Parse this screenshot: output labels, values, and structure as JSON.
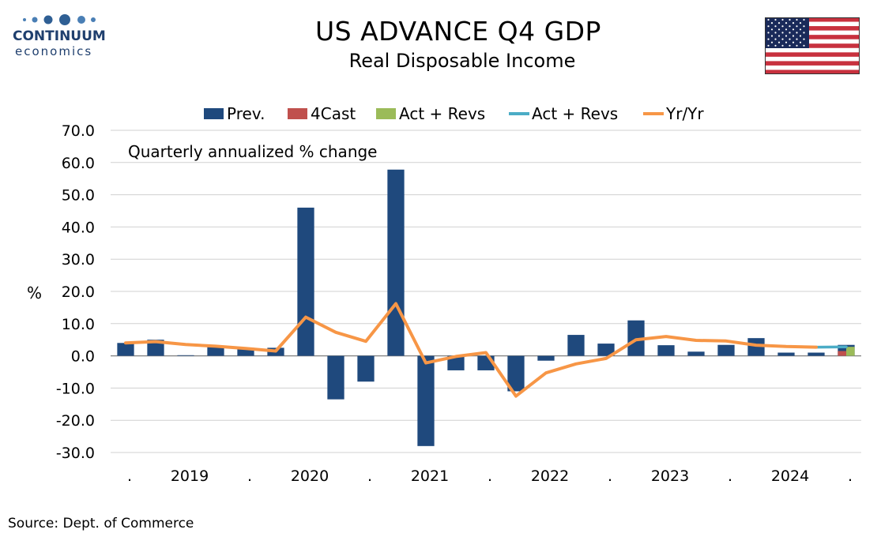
{
  "logo": {
    "brand": "CONTINUUM",
    "sub": "economics",
    "icon": "dots-logo-icon"
  },
  "header": {
    "title": "US ADVANCE Q4  GDP",
    "subtitle": "Real Disposable Income"
  },
  "flag": {
    "icon": "us-flag-icon",
    "colors": {
      "red": "#c8313e",
      "white": "#ffffff",
      "blue": "#1a2a5a"
    }
  },
  "footer": {
    "source": "Source: Dept. of Commerce"
  },
  "chart_data": {
    "type": "bar",
    "annotation": "Quarterly annualized % change",
    "ylabel": "%",
    "ylim": [
      -30,
      70
    ],
    "yticks": [
      "70.0",
      "60.0",
      "50.0",
      "40.0",
      "30.0",
      "20.0",
      "10.0",
      "0.0",
      "-10.0",
      "-20.0",
      "-30.0"
    ],
    "ytick_values": [
      70,
      60,
      50,
      40,
      30,
      20,
      10,
      0,
      -10,
      -20,
      -30
    ],
    "xtick_labels": [
      ".",
      "2019",
      ".",
      "2020",
      ".",
      "2021",
      ".",
      "2022",
      ".",
      "2023",
      ".",
      "2024",
      "."
    ],
    "grid": true,
    "legend": {
      "placement": "top",
      "items": [
        {
          "name": "Prev.",
          "type": "bar",
          "color": "#1f497d"
        },
        {
          "name": "4Cast",
          "type": "bar",
          "color": "#c0504d"
        },
        {
          "name": "Act + Revs",
          "type": "bar",
          "color": "#9bbb59"
        },
        {
          "name": "Act + Revs",
          "type": "line",
          "color": "#4bacc6"
        },
        {
          "name": "Yr/Yr",
          "type": "line",
          "color": "#f79646"
        }
      ]
    },
    "categories": [
      "2018Q4",
      "2019Q1",
      "2019Q2",
      "2019Q3",
      "2019Q4",
      "2020Q1",
      "2020Q2",
      "2020Q3",
      "2020Q4",
      "2021Q1",
      "2021Q2",
      "2021Q3",
      "2021Q4",
      "2022Q1",
      "2022Q2",
      "2022Q3",
      "2022Q4",
      "2023Q1",
      "2023Q2",
      "2023Q3",
      "2023Q4",
      "2024Q1",
      "2024Q2",
      "2024Q3",
      "2024Q4"
    ],
    "series": [
      {
        "name": "Prev.",
        "type": "bar",
        "color": "#1f497d",
        "values": [
          4.0,
          5.0,
          0.2,
          2.8,
          2.5,
          2.5,
          46.0,
          -13.5,
          -8.0,
          57.8,
          -28.0,
          -4.5,
          -4.5,
          -11.0,
          -1.5,
          6.5,
          3.8,
          11.0,
          3.3,
          1.3,
          3.4,
          5.5,
          1.0,
          1.0,
          3.4
        ]
      },
      {
        "name": "4Cast",
        "type": "bar",
        "color": "#c0504d",
        "values": [
          null,
          null,
          null,
          null,
          null,
          null,
          null,
          null,
          null,
          null,
          null,
          null,
          null,
          null,
          null,
          null,
          null,
          null,
          null,
          null,
          null,
          null,
          null,
          null,
          1.5
        ]
      },
      {
        "name": "Act + Revs",
        "type": "bar",
        "color": "#9bbb59",
        "values": [
          null,
          null,
          null,
          null,
          null,
          null,
          null,
          null,
          null,
          null,
          null,
          null,
          null,
          null,
          null,
          null,
          null,
          null,
          null,
          null,
          null,
          null,
          null,
          null,
          2.8
        ]
      },
      {
        "name": "Act + Revs",
        "type": "line",
        "color": "#4bacc6",
        "values": [
          null,
          null,
          null,
          null,
          null,
          null,
          null,
          null,
          null,
          null,
          null,
          null,
          null,
          null,
          null,
          null,
          null,
          null,
          null,
          null,
          null,
          null,
          null,
          2.7,
          2.8
        ]
      },
      {
        "name": "Yr/Yr",
        "type": "line",
        "color": "#f79646",
        "values": [
          4.0,
          4.4,
          3.5,
          3.0,
          2.3,
          1.5,
          12.0,
          7.3,
          4.5,
          16.2,
          -2.2,
          -0.2,
          1.0,
          -12.5,
          -5.3,
          -2.5,
          -0.8,
          5.0,
          6.0,
          4.8,
          4.6,
          3.3,
          2.9,
          2.7,
          null
        ]
      }
    ]
  }
}
